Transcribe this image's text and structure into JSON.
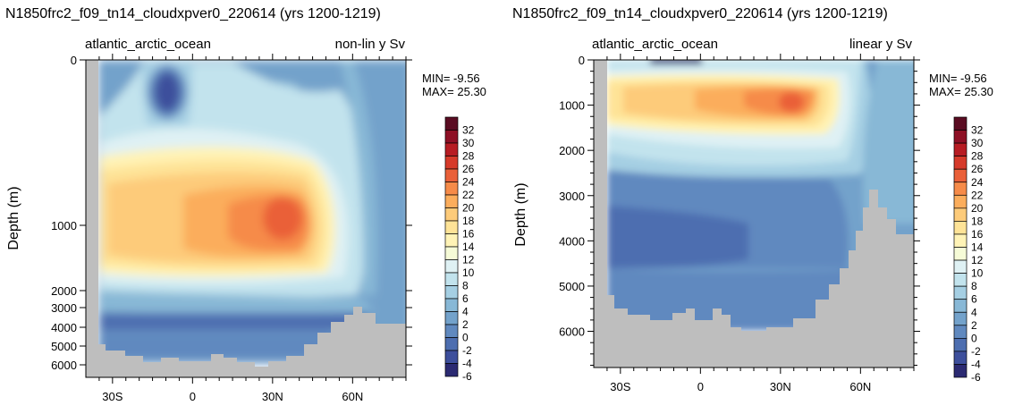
{
  "chart_data": [
    {
      "type": "heatmap",
      "title": "N1850frc2_f09_tn14_cloudxpver0_220614 (yrs 1200-1219)",
      "left_label": "atlantic_arctic_ocean",
      "right_label": "non-lin y Sv",
      "ylabel": "Depth (m)",
      "y_scale": "non-linear (stretched upper ocean)",
      "y_ticks": [
        "0",
        "1000",
        "2000",
        "3000",
        "4000",
        "5000",
        "6000"
      ],
      "y_tick_values": [
        0,
        1000,
        2000,
        3000,
        4000,
        5000,
        6000
      ],
      "x_ticks": [
        "30S",
        "0",
        "30N",
        "60N"
      ],
      "x_tick_values": [
        -30,
        0,
        30,
        60
      ],
      "xlim": [
        -40,
        80
      ],
      "min_label": "MIN= -9.56",
      "max_label": "MAX= 25.30",
      "colorbar_labels": [
        "32",
        "30",
        "28",
        "26",
        "24",
        "22",
        "20",
        "18",
        "16",
        "14",
        "12",
        "10",
        "8",
        "6",
        "4",
        "2",
        "0",
        "-2",
        "-4",
        "-6"
      ],
      "colorbar_colors": [
        "#5a0c22",
        "#8e1025",
        "#b71c23",
        "#d63a2a",
        "#ea6039",
        "#f68b49",
        "#fbad5c",
        "#fdcb7a",
        "#fee397",
        "#fff3b6",
        "#f6fbd7",
        "#dff1f4",
        "#c2e3ed",
        "#a5cfe3",
        "#88b8d6",
        "#73a2cb",
        "#6089bf",
        "#4d6eb0",
        "#3d4f9c",
        "#2b2a72"
      ],
      "data_notes": {
        "upper_cell_max_sv": 25.3,
        "upper_cell_max_location": {
          "lat": 36,
          "depth_m": 1000
        },
        "min_sv": -9.56,
        "min_location": {
          "lat": -14,
          "depth_m": 150
        }
      }
    },
    {
      "type": "heatmap",
      "title": "N1850frc2_f09_tn14_cloudxpver0_220614 (yrs 1200-1219)",
      "left_label": "atlantic_arctic_ocean",
      "right_label": "linear y Sv",
      "ylabel": "Depth (m)",
      "y_scale": "linear",
      "ylim": [
        0,
        6800
      ],
      "y_ticks": [
        "0",
        "1000",
        "2000",
        "3000",
        "4000",
        "5000",
        "6000"
      ],
      "y_tick_values": [
        0,
        1000,
        2000,
        3000,
        4000,
        5000,
        6000
      ],
      "x_ticks": [
        "30S",
        "0",
        "30N",
        "60N"
      ],
      "x_tick_values": [
        -30,
        0,
        30,
        60
      ],
      "xlim": [
        -40,
        80
      ],
      "min_label": "MIN= -9.56",
      "max_label": "MAX= 25.30",
      "colorbar_labels": [
        "32",
        "30",
        "28",
        "26",
        "24",
        "22",
        "20",
        "18",
        "16",
        "14",
        "12",
        "10",
        "8",
        "6",
        "4",
        "2",
        "0",
        "-2",
        "-4",
        "-6"
      ],
      "colorbar_colors": [
        "#5a0c22",
        "#8e1025",
        "#b71c23",
        "#d63a2a",
        "#ea6039",
        "#f68b49",
        "#fbad5c",
        "#fdcb7a",
        "#fee397",
        "#fff3b6",
        "#f6fbd7",
        "#dff1f4",
        "#c2e3ed",
        "#a5cfe3",
        "#88b8d6",
        "#73a2cb",
        "#6089bf",
        "#4d6eb0",
        "#3d4f9c",
        "#2b2a72"
      ],
      "data_notes": {
        "upper_cell_max_sv": 25.3,
        "upper_cell_max_location": {
          "lat": 36,
          "depth_m": 1000
        },
        "min_sv": -9.56
      }
    }
  ]
}
